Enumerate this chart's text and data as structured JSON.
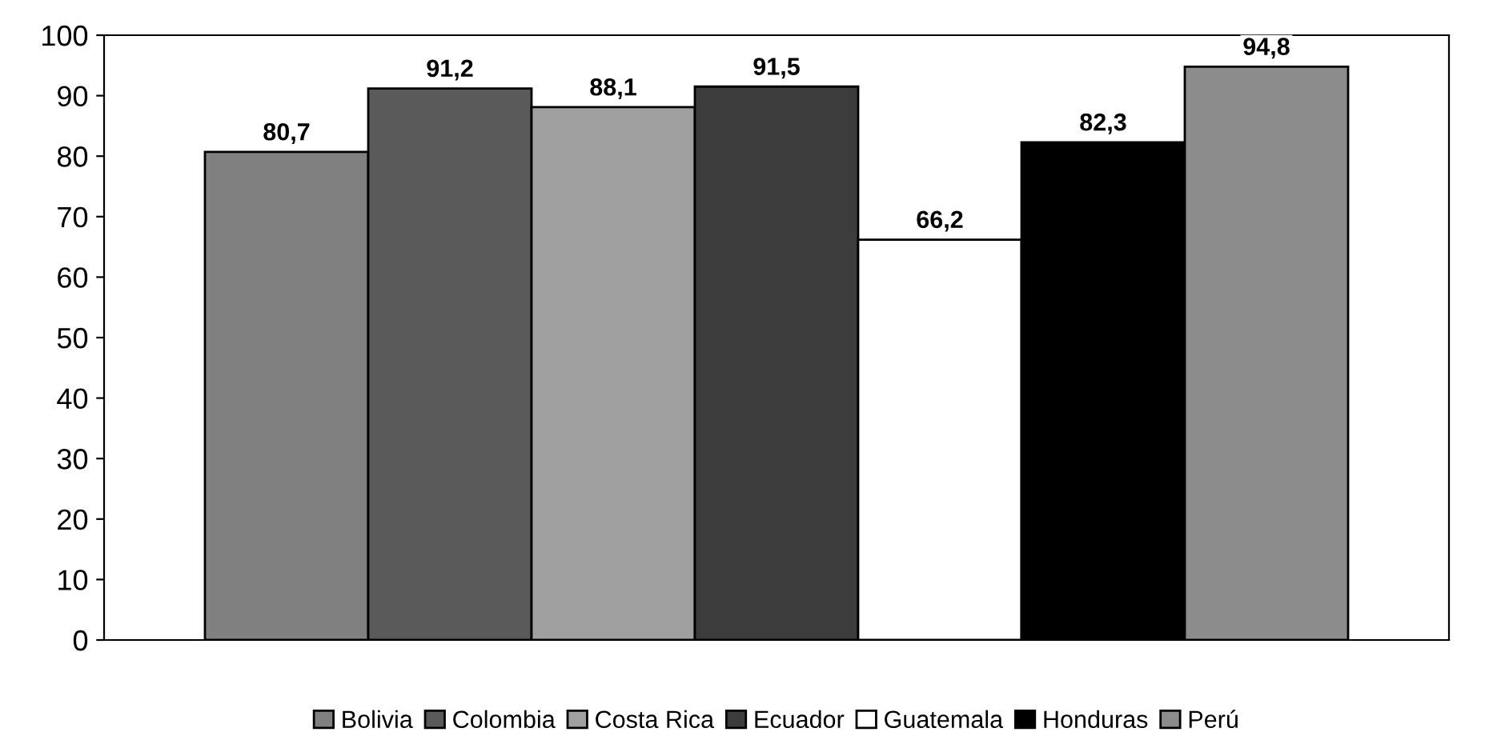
{
  "chart_data": {
    "type": "bar",
    "categories": [
      null
    ],
    "series": [
      {
        "name": "Bolivia",
        "color": "#808080",
        "values": [
          80.7
        ],
        "value_labels": [
          "80,7"
        ]
      },
      {
        "name": "Colombia",
        "color": "#5a5a5a",
        "values": [
          91.2
        ],
        "value_labels": [
          "91,2"
        ]
      },
      {
        "name": "Costa Rica",
        "color": "#a0a0a0",
        "values": [
          88.1
        ],
        "value_labels": [
          "88,1"
        ]
      },
      {
        "name": "Ecuador",
        "color": "#3c3c3c",
        "values": [
          91.5
        ],
        "value_labels": [
          "91,5"
        ]
      },
      {
        "name": "Guatemala",
        "color": "#ffffff",
        "values": [
          66.2
        ],
        "value_labels": [
          "66,2"
        ]
      },
      {
        "name": "Honduras",
        "color": "#000000",
        "values": [
          82.3
        ],
        "value_labels": [
          "82,3"
        ]
      },
      {
        "name": "Perú",
        "color": "#8c8c8c",
        "values": [
          94.8
        ],
        "value_labels": [
          "94,8"
        ]
      }
    ],
    "ylim": [
      0,
      100
    ],
    "yticks": [
      0,
      10,
      20,
      30,
      40,
      50,
      60,
      70,
      80,
      90,
      100
    ],
    "grid": false,
    "legend": "bottom"
  }
}
